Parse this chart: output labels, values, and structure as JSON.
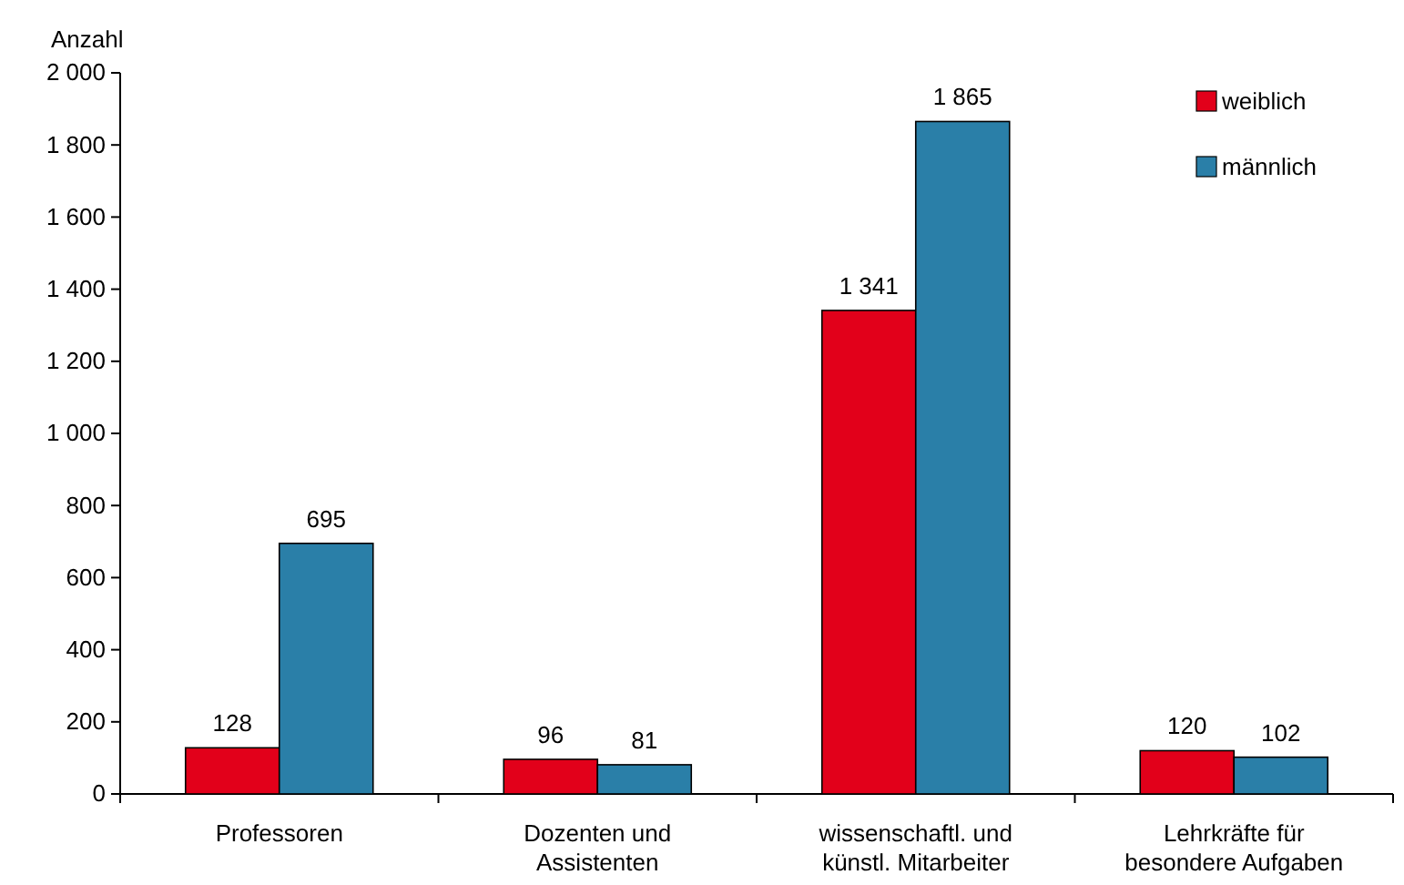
{
  "chart_data": {
    "type": "bar",
    "ylabel": "Anzahl",
    "categories": [
      "Professoren",
      "Dozenten und\nAssistenten",
      "wissenschaftl. und\nkünstl. Mitarbeiter",
      "Lehrkräfte für\nbesondere Aufgaben"
    ],
    "series": [
      {
        "name": "weiblich",
        "color": "#e2001a",
        "values": [
          128,
          96,
          1341,
          120
        ],
        "value_labels": [
          "128",
          "96",
          "1 341",
          "120"
        ]
      },
      {
        "name": "männlich",
        "color": "#2a7fa8",
        "values": [
          695,
          81,
          1865,
          102
        ],
        "value_labels": [
          "695",
          "81",
          "1 865",
          "102"
        ]
      }
    ],
    "ylim": [
      0,
      2000
    ],
    "yticks": [
      0,
      200,
      400,
      600,
      800,
      {
        "value": 1000,
        "label": "1 000"
      },
      {
        "value": 1200,
        "label": "1 200"
      },
      {
        "value": 1400,
        "label": "1 400"
      },
      {
        "value": 1600,
        "label": "1 600"
      },
      {
        "value": 1800,
        "label": "1 800"
      },
      {
        "value": 2000,
        "label": "2 000"
      }
    ],
    "grid": false,
    "legend": "top right"
  }
}
